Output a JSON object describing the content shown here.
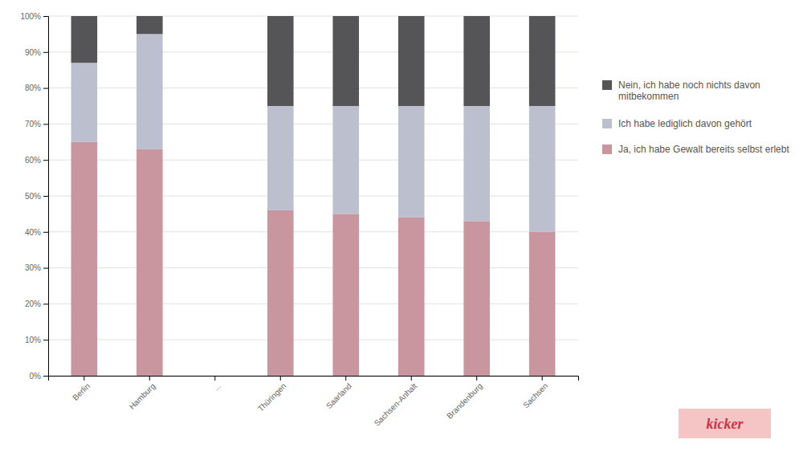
{
  "chart_data": {
    "type": "bar",
    "stacked": true,
    "categories": [
      "Berlin",
      "Hamburg",
      "...",
      "Thüringen",
      "Saarland",
      "Sachsen-Anhalt",
      "Brandenburg",
      "Sachsen"
    ],
    "series": [
      {
        "name": "Ja, ich habe Gewalt bereits selbst erlebt",
        "color": "#c9959e",
        "values": [
          65,
          63,
          0,
          46,
          45,
          44,
          43,
          40
        ]
      },
      {
        "name": "Ich habe lediglich davon gehört",
        "color": "#bbbfce",
        "values": [
          22,
          32,
          0,
          29,
          30,
          31,
          32,
          35
        ]
      },
      {
        "name": "Nein, ich habe noch nichts davon\nmitbekommen",
        "color": "#555558",
        "values": [
          13,
          5,
          0,
          25,
          25,
          25,
          25,
          25
        ]
      }
    ],
    "ylim": [
      0,
      100
    ],
    "yticks": [
      {
        "value": 0,
        "label": "0%"
      },
      {
        "value": 10,
        "label": "10%"
      },
      {
        "value": 20,
        "label": "20%"
      },
      {
        "value": 30,
        "label": "30%"
      },
      {
        "value": 40,
        "label": "40%"
      },
      {
        "value": 50,
        "label": "50%"
      },
      {
        "value": 60,
        "label": "60%"
      },
      {
        "value": 70,
        "label": "70%"
      },
      {
        "value": 80,
        "label": "80%"
      },
      {
        "value": 90,
        "label": "90%"
      },
      {
        "value": 100,
        "label": "100%"
      }
    ],
    "grid": true,
    "legend": "right",
    "annotations": [
      "kicker"
    ]
  }
}
